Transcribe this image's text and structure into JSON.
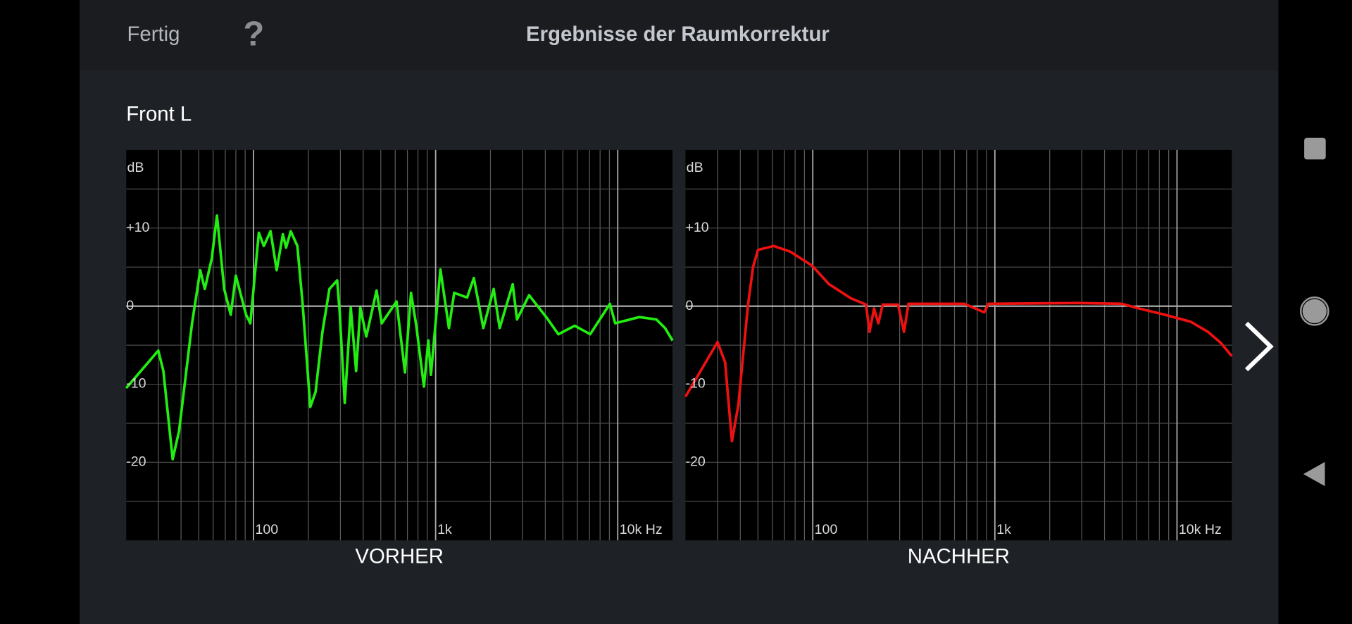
{
  "header": {
    "done": "Fertig",
    "help": "?",
    "title": "Ergebnisse der Raumkorrektur"
  },
  "channel": "Front L",
  "chart_data": [
    {
      "type": "line",
      "title": "VORHER",
      "ylabel": "dB",
      "color": "#22ee11",
      "xscale": "log",
      "xlim": [
        20,
        20000
      ],
      "xticks": [
        {
          "value": 100,
          "label": "100"
        },
        {
          "value": 1000,
          "label": "1k"
        },
        {
          "value": 10000,
          "label": "10k Hz"
        }
      ],
      "xminor_ticks": [
        30,
        40,
        50,
        60,
        70,
        80,
        90,
        200,
        300,
        400,
        500,
        600,
        700,
        800,
        900,
        2000,
        3000,
        4000,
        5000,
        6000,
        7000,
        8000,
        9000
      ],
      "ylim": [
        -30,
        20
      ],
      "yticks": [
        -20,
        -10,
        0,
        {
          "value": 10,
          "label": "+10"
        }
      ],
      "yminor_ticks": [
        -25,
        -15,
        -5,
        5,
        15
      ],
      "grid": true,
      "x": [
        20,
        30,
        32,
        36,
        39,
        46,
        51,
        54,
        59,
        63,
        69,
        75,
        80,
        91,
        96,
        107,
        114,
        124,
        134,
        145,
        151,
        160,
        174,
        186,
        205,
        219,
        239,
        261,
        288,
        297,
        317,
        342,
        366,
        386,
        416,
        474,
        506,
        610,
        679,
        733,
        783,
        863,
        912,
        942,
        1062,
        1183,
        1265,
        1489,
        1622,
        1828,
        2084,
        2249,
        2649,
        2799,
        3260,
        4050,
        4720,
        5800,
        7060,
        9060,
        9680,
        13100,
        16300,
        18200,
        20000
      ],
      "values": [
        -10.5,
        -5.7,
        -8.3,
        -19.6,
        -16.0,
        -2.2,
        4.6,
        2.2,
        6.1,
        11.6,
        2.2,
        -1.1,
        3.9,
        -1.1,
        -2.2,
        9.4,
        7.7,
        9.6,
        4.6,
        9.2,
        7.5,
        9.6,
        7.7,
        0.3,
        -12.9,
        -11.0,
        -3.3,
        2.2,
        3.3,
        -0.6,
        -12.4,
        -0.2,
        -8.3,
        -0.2,
        -3.9,
        2.0,
        -2.2,
        0.6,
        -8.5,
        1.7,
        -2.5,
        -10.3,
        -4.4,
        -8.8,
        4.7,
        -2.8,
        1.7,
        1.1,
        3.6,
        -2.8,
        2.2,
        -2.8,
        2.8,
        -1.7,
        1.4,
        -1.4,
        -3.6,
        -2.5,
        -3.6,
        0.3,
        -2.2,
        -1.4,
        -1.7,
        -2.8,
        -4.4
      ]
    },
    {
      "type": "line",
      "title": "NACHHER",
      "ylabel": "dB",
      "color": "#ee1111",
      "xscale": "log",
      "xlim": [
        20,
        20000
      ],
      "xticks": [
        {
          "value": 100,
          "label": "100"
        },
        {
          "value": 1000,
          "label": "1k"
        },
        {
          "value": 10000,
          "label": "10k Hz"
        }
      ],
      "xminor_ticks": [
        30,
        40,
        50,
        60,
        70,
        80,
        90,
        200,
        300,
        400,
        500,
        600,
        700,
        800,
        900,
        2000,
        3000,
        4000,
        5000,
        6000,
        7000,
        8000,
        9000
      ],
      "ylim": [
        -30,
        20
      ],
      "yticks": [
        -20,
        -10,
        0,
        {
          "value": 10,
          "label": "+10"
        }
      ],
      "yminor_ticks": [
        -25,
        -15,
        -5,
        5,
        15
      ],
      "grid": true,
      "x": [
        20,
        30,
        33,
        36,
        39,
        44,
        47,
        50,
        61,
        75,
        99,
        123,
        162,
        196,
        205,
        217,
        229,
        242,
        294,
        317,
        335,
        679,
        873,
        922,
        2890,
        4980,
        6190,
        8590,
        11900,
        14800,
        17400,
        20000
      ],
      "values": [
        -11.6,
        -4.6,
        -7.2,
        -17.3,
        -12.7,
        0,
        5.0,
        7.2,
        7.7,
        7.0,
        5.2,
        2.8,
        1.0,
        0.2,
        -3.3,
        -0.3,
        -2.2,
        0.2,
        0.2,
        -3.3,
        0.3,
        0.3,
        -0.8,
        0.3,
        0.4,
        0.3,
        -0.3,
        -1.1,
        -2.0,
        -3.3,
        -4.7,
        -6.4
      ]
    }
  ]
}
